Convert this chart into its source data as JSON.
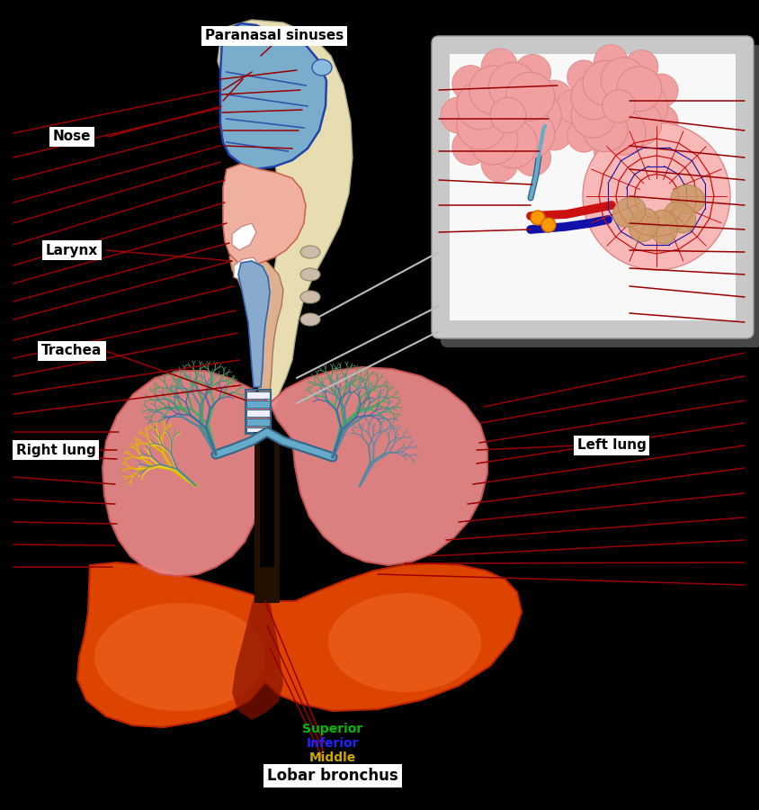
{
  "background_color": "#000000",
  "labels": {
    "paranasal_sinuses": "Paranasal sinuses",
    "nose": "Nose",
    "larynx": "Larynx",
    "trachea": "Trachea",
    "right_lung": "Right lung",
    "left_lung": "Left lung",
    "lobar_bronchus": "Lobar bronchus",
    "superior": "Superior",
    "inferior": "Inferior",
    "middle": "Middle"
  },
  "label_colors": {
    "superior": "#00bb00",
    "inferior": "#2222ff",
    "middle": "#ccaa00"
  },
  "label_box_color": "#ffffff",
  "label_text_color": "#000000",
  "ann_line_color": "#990000",
  "white_line_color": "#bbbbbb",
  "face_color": "#e8ddb0",
  "face_edge": "#aaa880",
  "nasal_blue": "#7aadcc",
  "nasal_edge": "#2244aa",
  "oral_pink": "#e8a090",
  "larynx_gray": "#cccccc",
  "larynx_dark": "#444444",
  "trachea_blue": "#66aacc",
  "trachea_white": "#eeeeff",
  "trachea_dark": "#336688",
  "lung_pink": "#e88888",
  "lung_edge": "#cc5555",
  "lung_base_orange": "#dd5500",
  "lung_base_dark": "#cc3300",
  "diaphragm_orange": "#dd4400",
  "diaphragm_dark": "#bb2200",
  "bronchi_green": "#559966",
  "bronchi_teal": "#558899",
  "bronchi_blue": "#4466aa",
  "bronchi_yellow": "#ccaa00",
  "inset_gray": "#c8c8c8",
  "inset_white": "#f8f8f8",
  "alv_pink": "#f0a0a0",
  "alv_dark_pink": "#dd8888",
  "alv_red": "#cc1111",
  "alv_blue": "#1111aa",
  "alv_tan": "#cc9966"
}
